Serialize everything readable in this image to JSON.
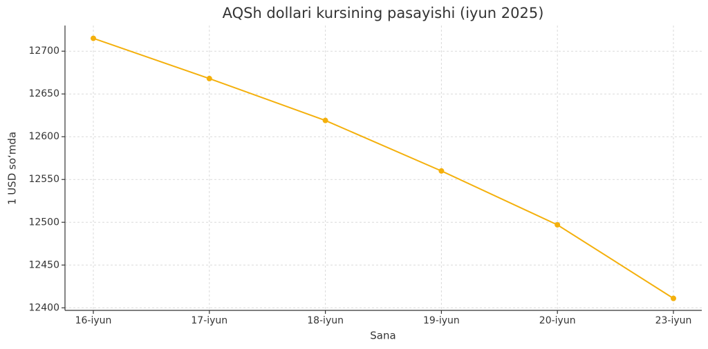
{
  "chart_data": {
    "type": "line",
    "title": "AQSh dollari kursining pasayishi (iyun 2025)",
    "x_label": "Sana",
    "y_label": "1 USD so‘mda",
    "categories": [
      "16-iyun",
      "17-iyun",
      "18-iyun",
      "19-iyun",
      "20-iyun",
      "23-iyun"
    ],
    "series": [
      {
        "name": "USD",
        "color": "#f4b00c",
        "values": [
          12715,
          12668,
          12619,
          12560,
          12497,
          12411
        ]
      }
    ],
    "ylim": [
      12397,
      12730
    ],
    "yticks": [
      12400,
      12450,
      12500,
      12550,
      12600,
      12650,
      12700
    ],
    "grid": true
  }
}
